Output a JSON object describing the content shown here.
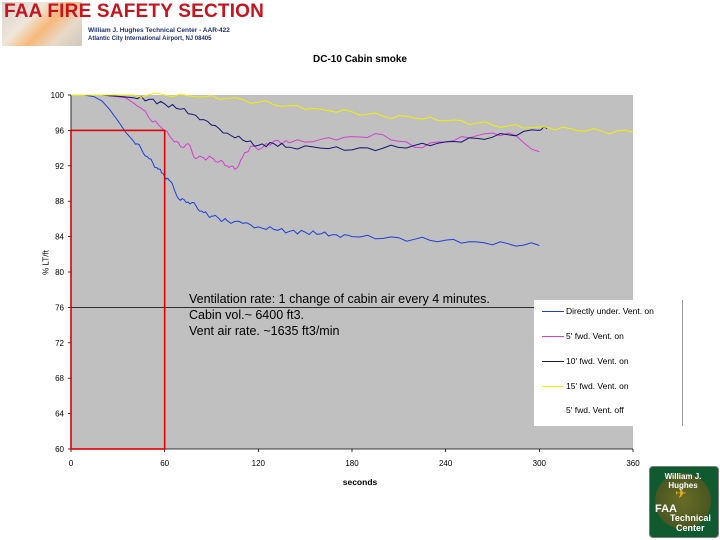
{
  "header": {
    "title": "FAA FIRE SAFETY SECTION",
    "line1": "William J. Hughes Technical Center - AAR-422",
    "line2": "Atlantic City International Airport, NJ 08405"
  },
  "annotation": {
    "line1": "Ventilation rate: 1 change of cabin air every 4 minutes.",
    "line2": "Cabin vol.~ 6400 ft3.",
    "line3": "Vent air rate. ~1635 ft3/min"
  },
  "badge": {
    "top": "William J. Hughes",
    "faa": "FAA",
    "line1": "Technical",
    "line2": "Center"
  },
  "colors": {
    "plot_bg": "#c0c0c0",
    "highlight": "#e00000",
    "blue": "#1f3fd6",
    "magenta": "#d23fd2",
    "navy": "#151570",
    "yellow": "#f0f000"
  },
  "chart_data": {
    "type": "line",
    "title": "DC-10 Cabin smoke",
    "xlabel": "seconds",
    "ylabel": "% LT/ft",
    "xlim": [
      0,
      360
    ],
    "ylim": [
      60,
      100
    ],
    "xticks": [
      0,
      60,
      120,
      180,
      240,
      300,
      360
    ],
    "yticks": [
      60,
      64,
      68,
      72,
      76,
      80,
      84,
      88,
      92,
      96,
      100
    ],
    "highlight_box": {
      "x": [
        0,
        60
      ],
      "y": [
        60,
        96
      ]
    },
    "series": [
      {
        "name": "Directly under. Vent. on",
        "color": "#1f3fd6",
        "x": [
          0,
          8,
          15,
          20,
          25,
          30,
          35,
          40,
          45,
          50,
          55,
          58,
          62,
          66,
          70,
          75,
          80,
          85,
          90,
          95,
          100,
          110,
          120,
          130,
          140,
          150,
          160,
          170,
          180,
          200,
          220,
          240,
          260,
          280,
          300
        ],
        "y": [
          100,
          100,
          99.8,
          99.3,
          98.3,
          97.1,
          95.8,
          94.8,
          93.9,
          92.8,
          91.8,
          91.2,
          90.6,
          89.4,
          88.1,
          87.9,
          87.5,
          86.7,
          86.3,
          86.0,
          85.8,
          85.5,
          85.1,
          84.8,
          84.6,
          84.5,
          84.3,
          84.2,
          84.0,
          83.8,
          83.7,
          83.6,
          83.4,
          83.2,
          83.0
        ]
      },
      {
        "name": "5' fwd. Vent. on",
        "color": "#d23fd2",
        "x": [
          0,
          20,
          35,
          45,
          50,
          58,
          65,
          70,
          75,
          80,
          85,
          90,
          95,
          100,
          105,
          110,
          115,
          120,
          130,
          140,
          160,
          180,
          200,
          220,
          240,
          260,
          280,
          300
        ],
        "y": [
          100,
          100,
          99.7,
          98.5,
          97.4,
          96.3,
          95.0,
          94.2,
          94.5,
          92.8,
          92.9,
          92.9,
          92.5,
          92.0,
          91.6,
          93.0,
          94.2,
          93.8,
          94.8,
          94.6,
          95.0,
          95.3,
          95.5,
          94.1,
          94.7,
          95.4,
          95.7,
          93.6
        ]
      },
      {
        "name": "10' fwd. Vent. on",
        "color": "#151570",
        "x": [
          0,
          20,
          40,
          50,
          60,
          70,
          80,
          90,
          100,
          110,
          120,
          130,
          140,
          160,
          180,
          200,
          220,
          240,
          260,
          280,
          300,
          305
        ],
        "y": [
          100,
          100,
          99.7,
          99.5,
          99.0,
          98.4,
          97.7,
          96.6,
          95.7,
          94.9,
          94.3,
          94.5,
          94.1,
          94.0,
          93.8,
          94.0,
          94.3,
          94.7,
          95.1,
          95.5,
          96.0,
          96.2
        ]
      },
      {
        "name": "15' fwd. Vent. on",
        "color": "#f0f000",
        "x": [
          0,
          40,
          60,
          80,
          100,
          120,
          140,
          160,
          180,
          200,
          220,
          240,
          260,
          280,
          300,
          320,
          340,
          360
        ],
        "y": [
          100,
          100,
          100,
          99.8,
          99.6,
          99.2,
          98.8,
          98.4,
          98.1,
          97.6,
          97.4,
          97.1,
          96.8,
          96.5,
          96.4,
          96.2,
          95.9,
          95.8
        ]
      },
      {
        "name": "5' fwd. Vent. off",
        "color": "#ffffff",
        "x": [],
        "y": []
      }
    ]
  }
}
